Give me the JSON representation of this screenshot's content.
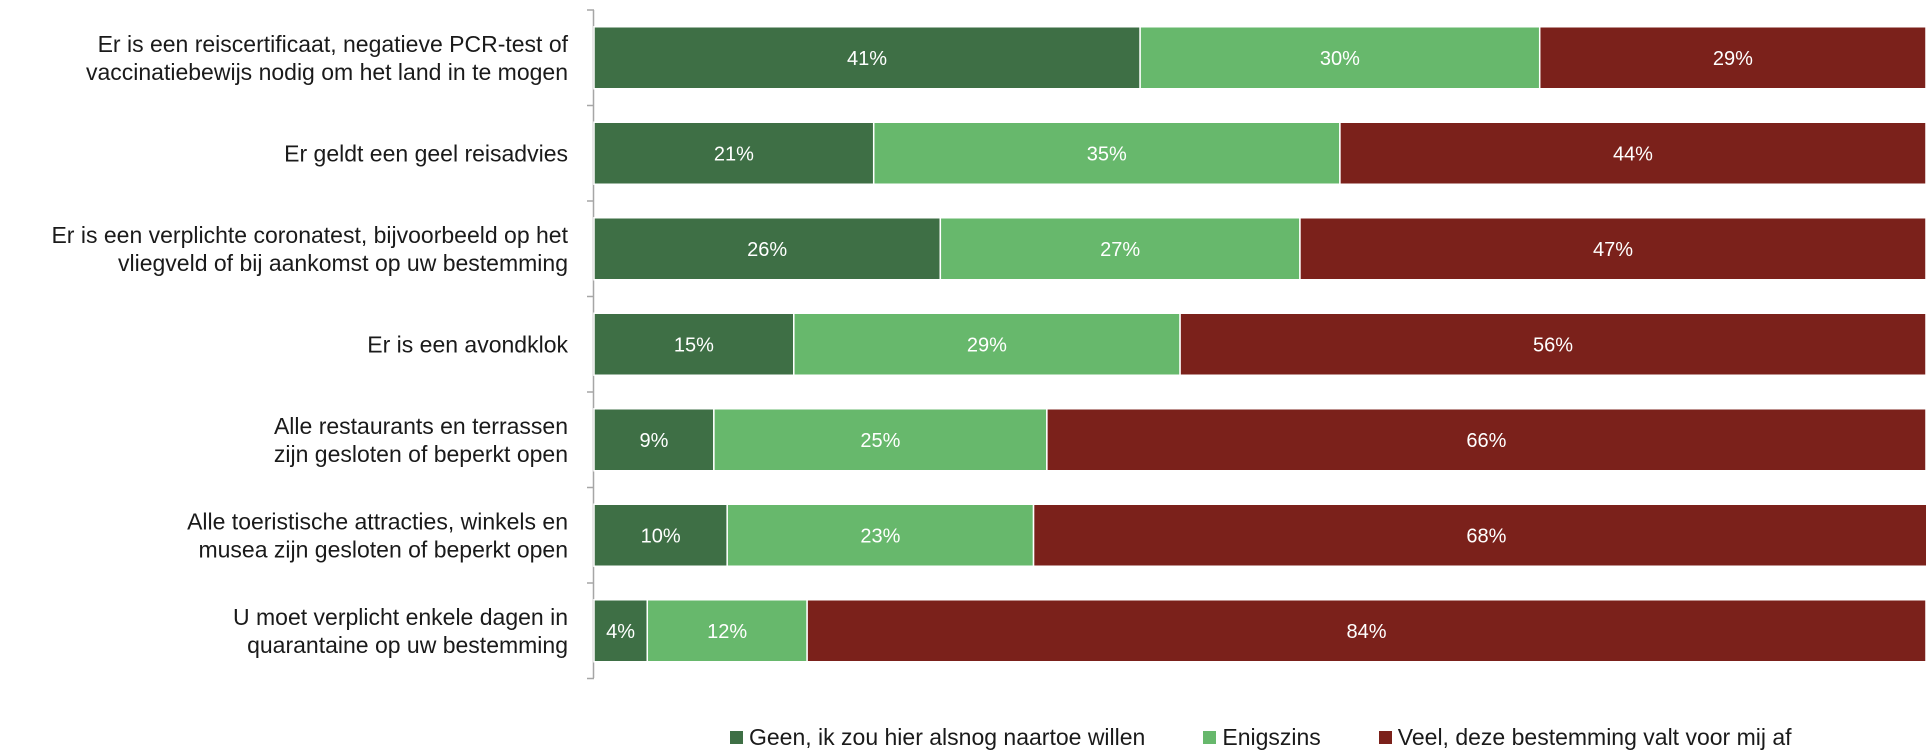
{
  "chart_data": {
    "type": "bar",
    "orientation": "horizontal",
    "stacked": true,
    "categories": [
      [
        "Er is een reiscertificaat, negatieve PCR-test of",
        "vaccinatiebewijs nodig om het land in te mogen"
      ],
      [
        "Er geldt een geel reisadvies"
      ],
      [
        "Er is een verplichte coronatest, bijvoorbeeld op het",
        "vliegveld of bij aankomst op uw bestemming"
      ],
      [
        "Er is een avondklok"
      ],
      [
        "Alle restaurants en terrassen",
        "zijn gesloten of beperkt open"
      ],
      [
        "Alle toeristische attracties, winkels en",
        "musea zijn gesloten of beperkt open"
      ],
      [
        "U moet verplicht enkele dagen in",
        "quarantaine op uw bestemming"
      ]
    ],
    "series": [
      {
        "name": "Geen, ik zou hier alsnog naartoe willen",
        "color": "#3e6f45",
        "values": [
          41,
          21,
          26,
          15,
          9,
          10,
          4
        ]
      },
      {
        "name": "Enigszins",
        "color": "#67b86c",
        "values": [
          30,
          35,
          27,
          29,
          25,
          23,
          12
        ]
      },
      {
        "name": "Veel, deze bestemming valt voor mij af",
        "color": "#7b211b",
        "values": [
          29,
          44,
          47,
          56,
          66,
          68,
          84
        ]
      }
    ],
    "value_suffix": "%",
    "xlim": [
      0,
      100
    ],
    "grid": false,
    "legend_position": "bottom"
  }
}
